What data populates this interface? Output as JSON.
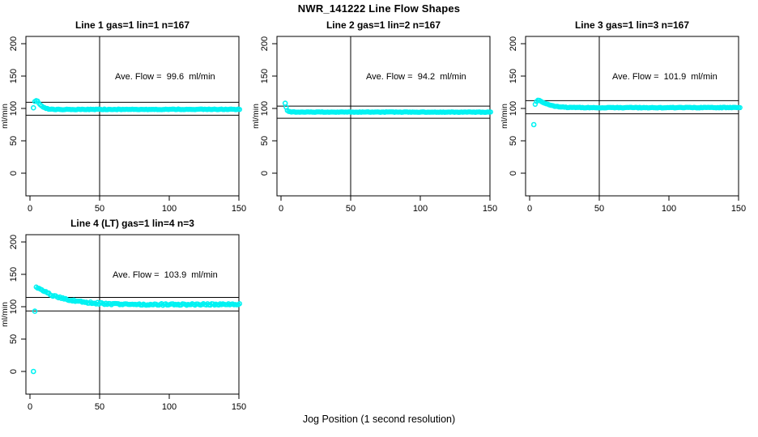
{
  "page": {
    "title": "NWR_141222  Line Flow Shapes",
    "xlabel": "Jog Position (1 second resolution)"
  },
  "chart_data": {
    "type": "scatter",
    "point_color": "#00F2F2",
    "axis_color": "#000000",
    "marker": "open-circle",
    "x_ticks": [
      0,
      50,
      100,
      150
    ],
    "y_ticks": [
      0,
      50,
      100,
      150,
      200
    ],
    "ylabel": "ml/min",
    "xlim": [
      -3,
      152
    ],
    "ylim": [
      -35,
      211
    ],
    "vline_x": 50,
    "legend": "none",
    "grid": false,
    "panels": [
      {
        "title": "Line 1 gas=1 lin=1 n=167",
        "annotation": "Ave. Flow =  99.6  ml/min",
        "ave_flow": 99.6,
        "ref_upper": 109.6,
        "ref_lower": 89.6,
        "outliers": [
          [
            2.5,
            101
          ]
        ],
        "keyframes": [
          [
            3.5,
            111
          ],
          [
            4.5,
            112
          ],
          [
            5.5,
            111
          ],
          [
            6.5,
            108
          ],
          [
            7.5,
            105.5
          ],
          [
            8.5,
            103.5
          ],
          [
            9.5,
            102
          ],
          [
            11,
            100.3
          ],
          [
            13,
            99.2
          ],
          [
            16,
            98.5
          ],
          [
            25,
            98.4
          ],
          [
            60,
            98.6
          ],
          [
            151,
            98.7
          ]
        ],
        "noise": 0.5,
        "x_start": 3.5,
        "x_end": 151
      },
      {
        "title": "Line 2 gas=1 lin=2 n=167",
        "annotation": "Ave. Flow =  94.2  ml/min",
        "ave_flow": 94.2,
        "ref_upper": 103.6,
        "ref_lower": 84.8,
        "outliers": [
          [
            3,
            108
          ],
          [
            3.7,
            102
          ]
        ],
        "keyframes": [
          [
            4.5,
            97
          ],
          [
            5.5,
            95.5
          ],
          [
            7,
            94.8
          ],
          [
            10,
            94.4
          ],
          [
            151,
            94.3
          ]
        ],
        "noise": 0.4,
        "x_start": 4.5,
        "x_end": 151
      },
      {
        "title": "Line 3 gas=1 lin=3 n=167",
        "annotation": "Ave. Flow =  101.9  ml/min",
        "ave_flow": 101.9,
        "ref_upper": 112.1,
        "ref_lower": 91.7,
        "outliers": [
          [
            3,
            75
          ]
        ],
        "keyframes": [
          [
            4,
            106
          ],
          [
            5,
            111
          ],
          [
            6,
            113
          ],
          [
            7,
            112.5
          ],
          [
            8,
            111
          ],
          [
            10,
            108.8
          ],
          [
            12,
            107
          ],
          [
            15,
            104.8
          ],
          [
            18,
            103.3
          ],
          [
            22,
            102.3
          ],
          [
            28,
            101.6
          ],
          [
            45,
            101.2
          ],
          [
            151,
            101.4
          ]
        ],
        "noise": 0.5,
        "x_start": 4,
        "x_end": 151
      },
      {
        "title": "Line 4 (LT) gas=1 lin=4 n=3",
        "annotation": "Ave. Flow =  103.9  ml/min",
        "ave_flow": 103.9,
        "ref_upper": 114.3,
        "ref_lower": 93.5,
        "outliers": [
          [
            2.5,
            0
          ],
          [
            3.5,
            93
          ]
        ],
        "keyframes": [
          [
            4.5,
            131
          ],
          [
            6,
            129
          ],
          [
            8,
            126.5
          ],
          [
            10,
            124
          ],
          [
            12,
            121.5
          ],
          [
            15,
            118.5
          ],
          [
            18,
            116
          ],
          [
            22,
            113.5
          ],
          [
            26,
            111.5
          ],
          [
            31,
            109.5
          ],
          [
            37,
            107.5
          ],
          [
            44,
            106
          ],
          [
            52,
            104.8
          ],
          [
            62,
            104
          ],
          [
            75,
            103.6
          ],
          [
            100,
            103.4
          ],
          [
            130,
            103.7
          ],
          [
            151,
            103.8
          ]
        ],
        "noise": 1.3,
        "x_start": 4.5,
        "x_end": 151
      }
    ]
  }
}
